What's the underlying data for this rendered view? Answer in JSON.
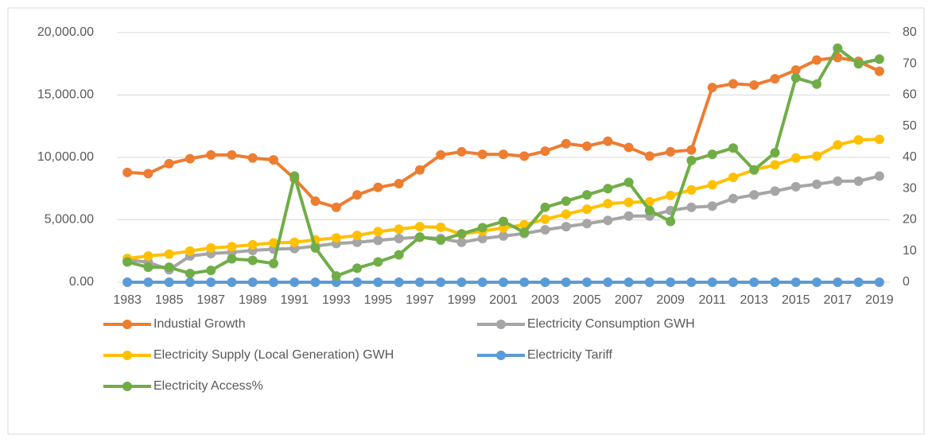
{
  "chart_data": {
    "type": "line",
    "categories": [
      "1983",
      null,
      "1985",
      null,
      "1987",
      null,
      "1989",
      null,
      "1991",
      null,
      "1993",
      null,
      "1995",
      null,
      "1997",
      null,
      "1999",
      null,
      "2001",
      null,
      "2003",
      null,
      "2005",
      null,
      "2007",
      null,
      "2009",
      null,
      "2011",
      null,
      "2013",
      null,
      "2015",
      null,
      "2017",
      null,
      "2019"
    ],
    "ylim": [
      0,
      20000
    ],
    "yticks": [
      {
        "value": 0,
        "label": "0.00"
      },
      {
        "value": 5000,
        "label": "5,000.00"
      },
      {
        "value": 10000,
        "label": "10,000.00"
      },
      {
        "value": 15000,
        "label": "15,000.00"
      },
      {
        "value": 20000,
        "label": "20,000.00"
      }
    ],
    "y2lim": [
      0,
      80
    ],
    "y2ticks": [
      0,
      10,
      20,
      30,
      40,
      50,
      60,
      70,
      80
    ],
    "grid": true,
    "legend": "bottom",
    "series": [
      {
        "name": "Industial Growth",
        "color": "#ed7d31",
        "values": [
          8800,
          8700,
          9500,
          9900,
          10200,
          10200,
          9950,
          9800,
          8300,
          6500,
          6000,
          7000,
          7600,
          7900,
          9000,
          10200,
          10450,
          10250,
          10250,
          10100,
          10500,
          11100,
          10900,
          11300,
          10800,
          10100,
          10450,
          10600,
          15600,
          15900,
          15800,
          16300,
          17000,
          17800,
          18000,
          17700,
          16900
        ]
      },
      {
        "name": "Electricity Consumption GWH",
        "color": "#a5a5a5",
        "values": [
          1800,
          1600,
          1000,
          2100,
          2300,
          2400,
          2550,
          2650,
          2700,
          2900,
          3100,
          3200,
          3350,
          3500,
          3600,
          3500,
          3200,
          3500,
          3700,
          3900,
          4200,
          4450,
          4700,
          4950,
          5300,
          5300,
          5750,
          6000,
          6100,
          6700,
          7000,
          7300,
          7650,
          7850,
          8100,
          8100,
          8500
        ]
      },
      {
        "name": "Electricity Supply (Local Generation) GWH",
        "color": "#ffc000",
        "values": [
          1900,
          2100,
          2250,
          2500,
          2750,
          2850,
          3000,
          3150,
          3200,
          3400,
          3550,
          3750,
          4050,
          4250,
          4450,
          4400,
          3850,
          4100,
          4350,
          4600,
          5050,
          5450,
          5850,
          6300,
          6400,
          6450,
          6950,
          7400,
          7800,
          8400,
          9000,
          9400,
          9950,
          10100,
          11000,
          11400,
          11450
        ]
      },
      {
        "name": "Electricity Tariff",
        "color": "#5b9bd5",
        "values": [
          0,
          0,
          0,
          0,
          0,
          0,
          0,
          0,
          0,
          0,
          0,
          0,
          0,
          0,
          0,
          0,
          0,
          0,
          0,
          0,
          0,
          0,
          0,
          0,
          0,
          0,
          0,
          0,
          0,
          0,
          0,
          0,
          0,
          0,
          0,
          0,
          0
        ]
      },
      {
        "name": "Electricity Access%",
        "color": "#70ad47",
        "axis": "y2",
        "values": [
          6.5,
          4.8,
          4.8,
          2.8,
          3.8,
          7.5,
          7,
          6,
          34,
          11,
          2,
          4.5,
          6.5,
          8.8,
          14.5,
          13.5,
          15.5,
          17.5,
          19.5,
          16,
          24,
          26,
          28,
          30,
          32,
          23,
          19.5,
          39,
          41,
          43,
          36,
          41.5,
          65.5,
          63.5,
          75,
          70,
          71.5
        ]
      }
    ]
  }
}
